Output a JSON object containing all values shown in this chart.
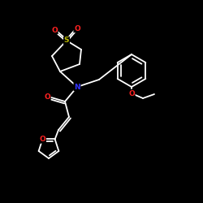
{
  "bg_color": "#000000",
  "bond_color": "#ffffff",
  "atom_colors": {
    "N": "#3333ff",
    "O": "#ff2222",
    "S": "#bbbb00",
    "C": "#ffffff"
  },
  "figsize": [
    2.5,
    2.5
  ],
  "dpi": 100,
  "lw": 1.3,
  "fs": 6.5
}
